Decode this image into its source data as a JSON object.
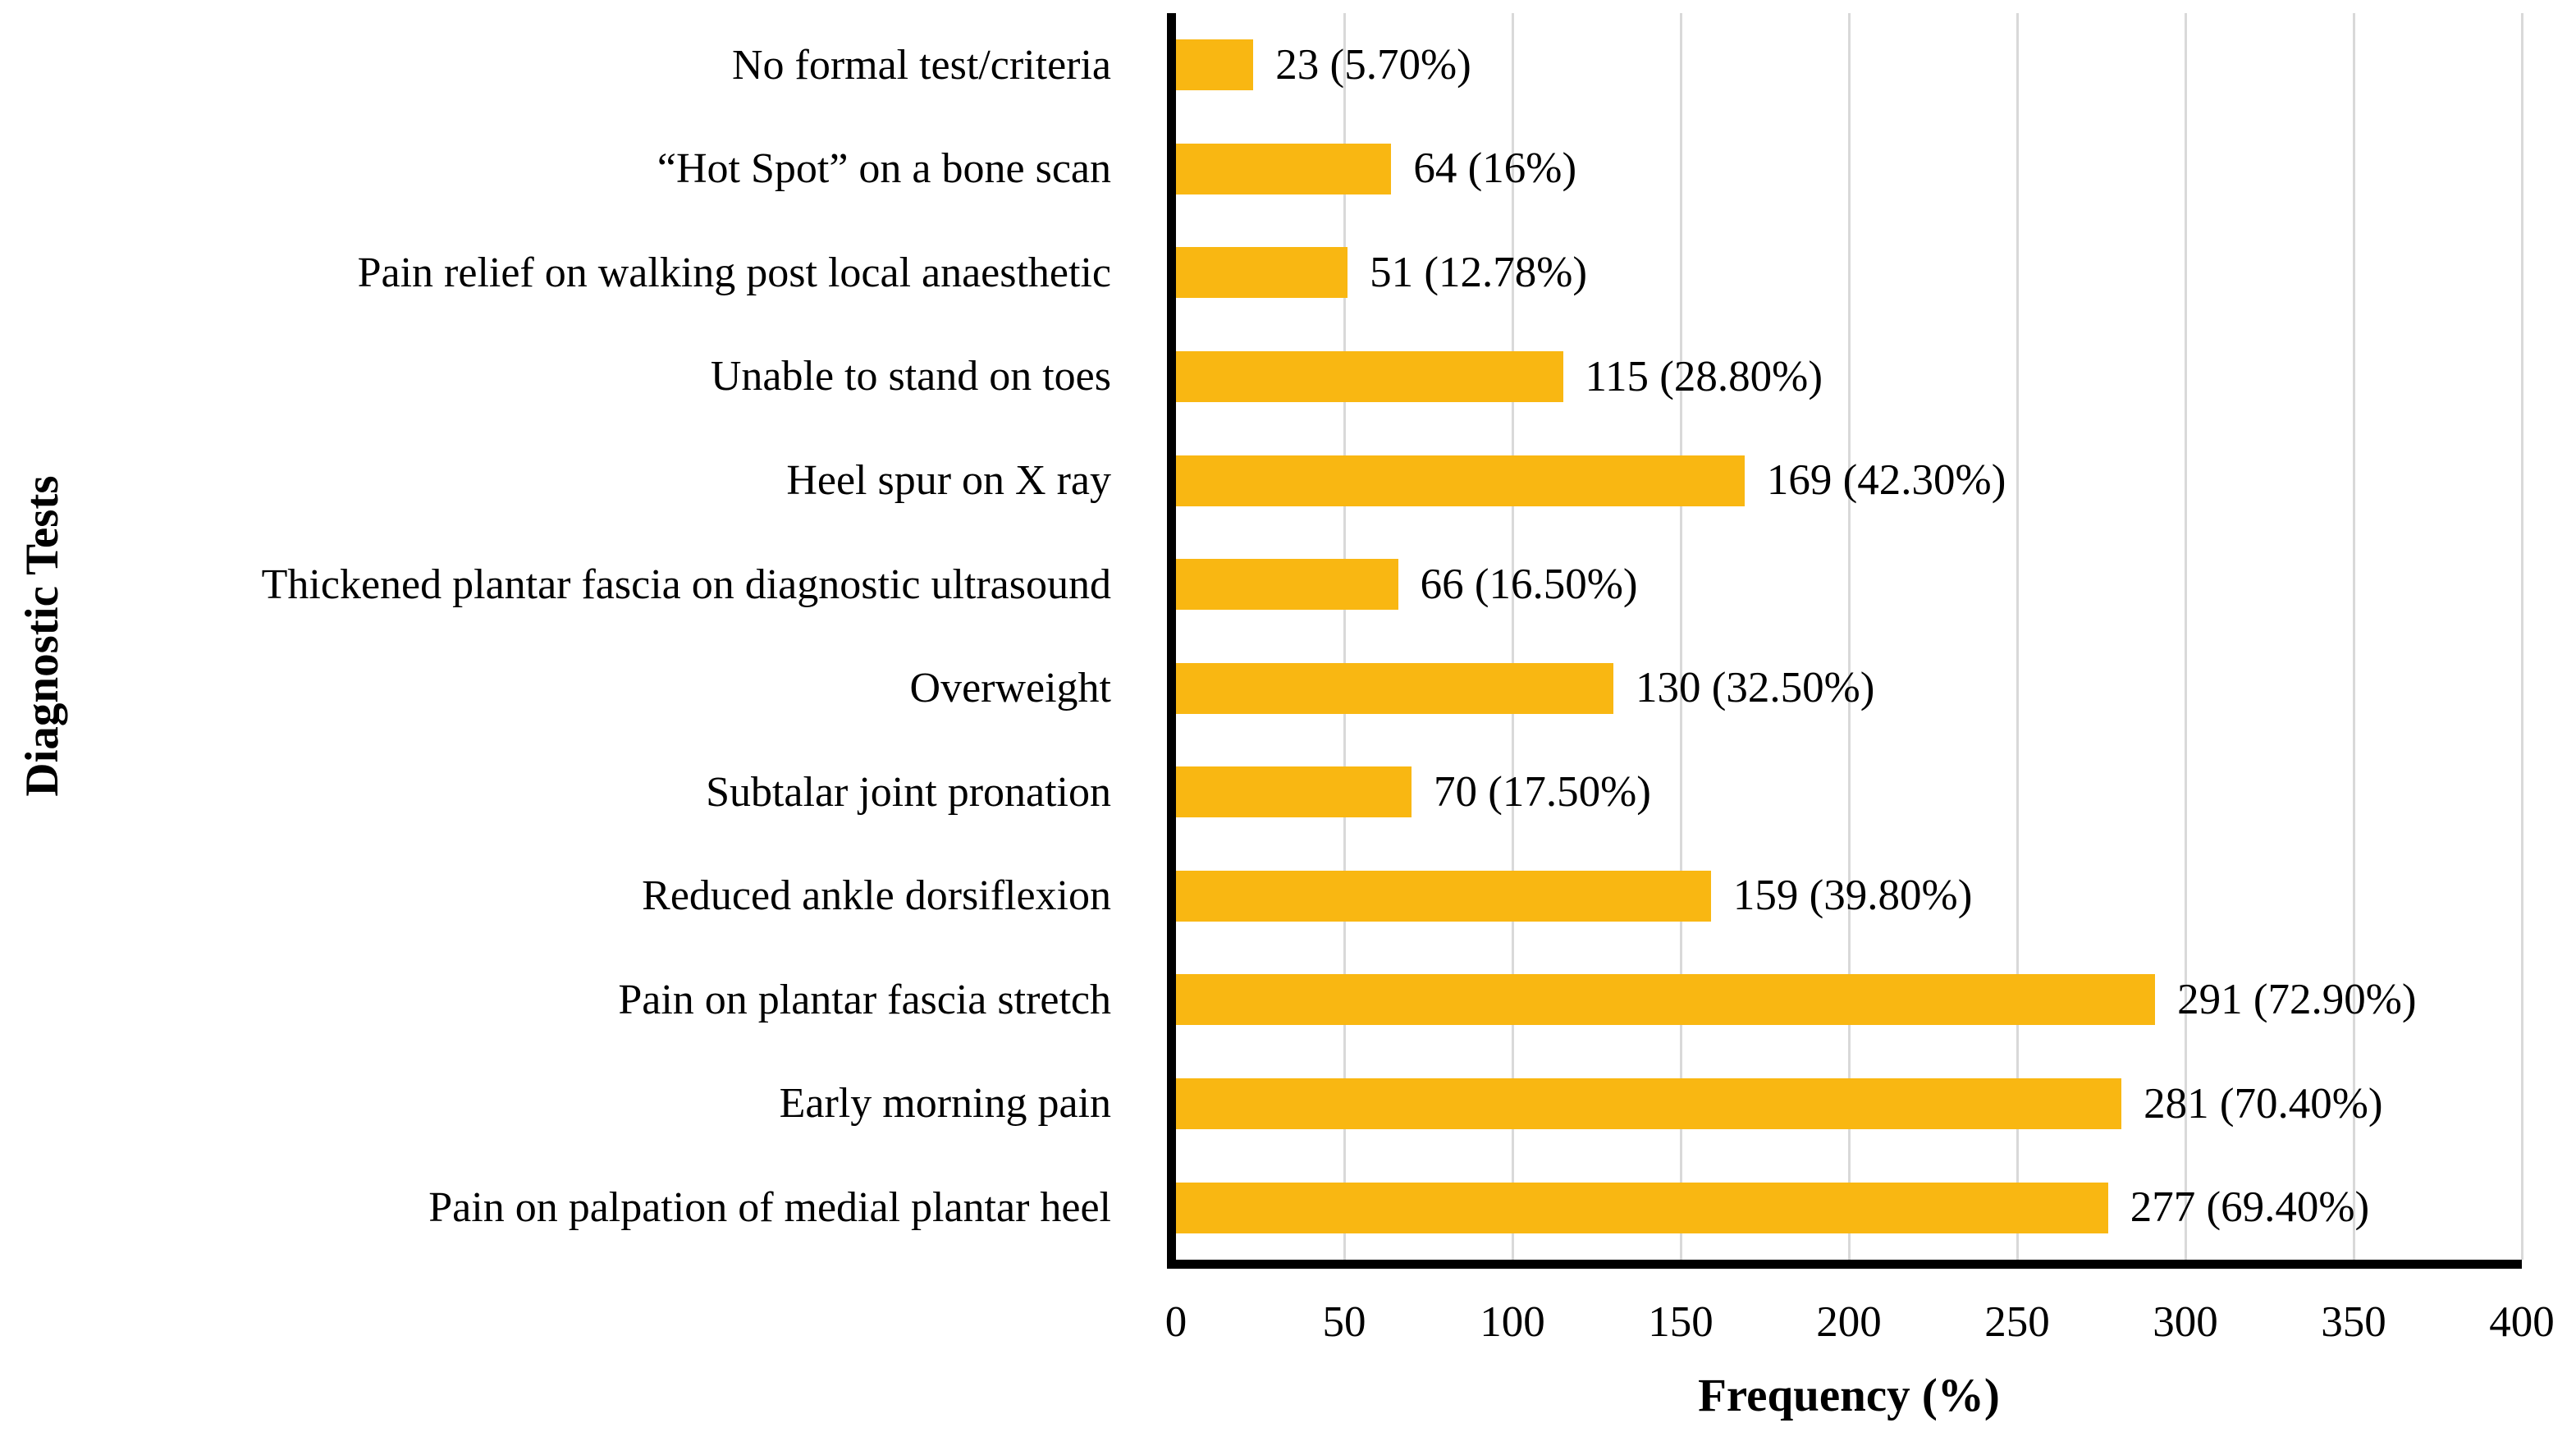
{
  "chart_data": {
    "type": "bar",
    "orientation": "horizontal",
    "xlabel": "Frequency (%)",
    "ylabel": "Diagnostic Tests",
    "xlim": [
      0,
      400
    ],
    "xticks": [
      0,
      50,
      100,
      150,
      200,
      250,
      300,
      350,
      400
    ],
    "grid": "vertical gridlines at each x tick, behind bars",
    "legend": "none",
    "bar_color": "#F9B712",
    "gridline_color": "#D9D9D9",
    "axis_color": "#000000",
    "text_color": "#000000",
    "categories": [
      "No formal test/criteria",
      "“Hot Spot” on a bone scan",
      "Pain relief on walking post local anaesthetic",
      "Unable to stand on toes",
      "Heel spur on X ray",
      "Thickened plantar fascia on diagnostic ultrasound",
      "Overweight",
      "Subtalar joint pronation",
      "Reduced ankle dorsiflexion",
      "Pain on plantar fascia stretch",
      "Early morning pain",
      "Pain on palpation of medial plantar heel"
    ],
    "values": [
      23,
      64,
      51,
      115,
      169,
      66,
      130,
      70,
      159,
      291,
      281,
      277
    ],
    "percents": [
      "5.70",
      "16",
      "12.78",
      "28.80",
      "42.30",
      "16.50",
      "32.50",
      "17.50",
      "39.80",
      "72.90",
      "70.40",
      "69.40"
    ],
    "bar_labels": [
      "23 (5.70%)",
      "64 (16%)",
      "51 (12.78%)",
      "115 (28.80%)",
      "169 (42.30%)",
      "66 (16.50%)",
      "130 (32.50%)",
      "70 (17.50%)",
      "159 (39.80%)",
      "291 (72.90%)",
      "281 (70.40%)",
      "277 (69.40%)"
    ]
  }
}
